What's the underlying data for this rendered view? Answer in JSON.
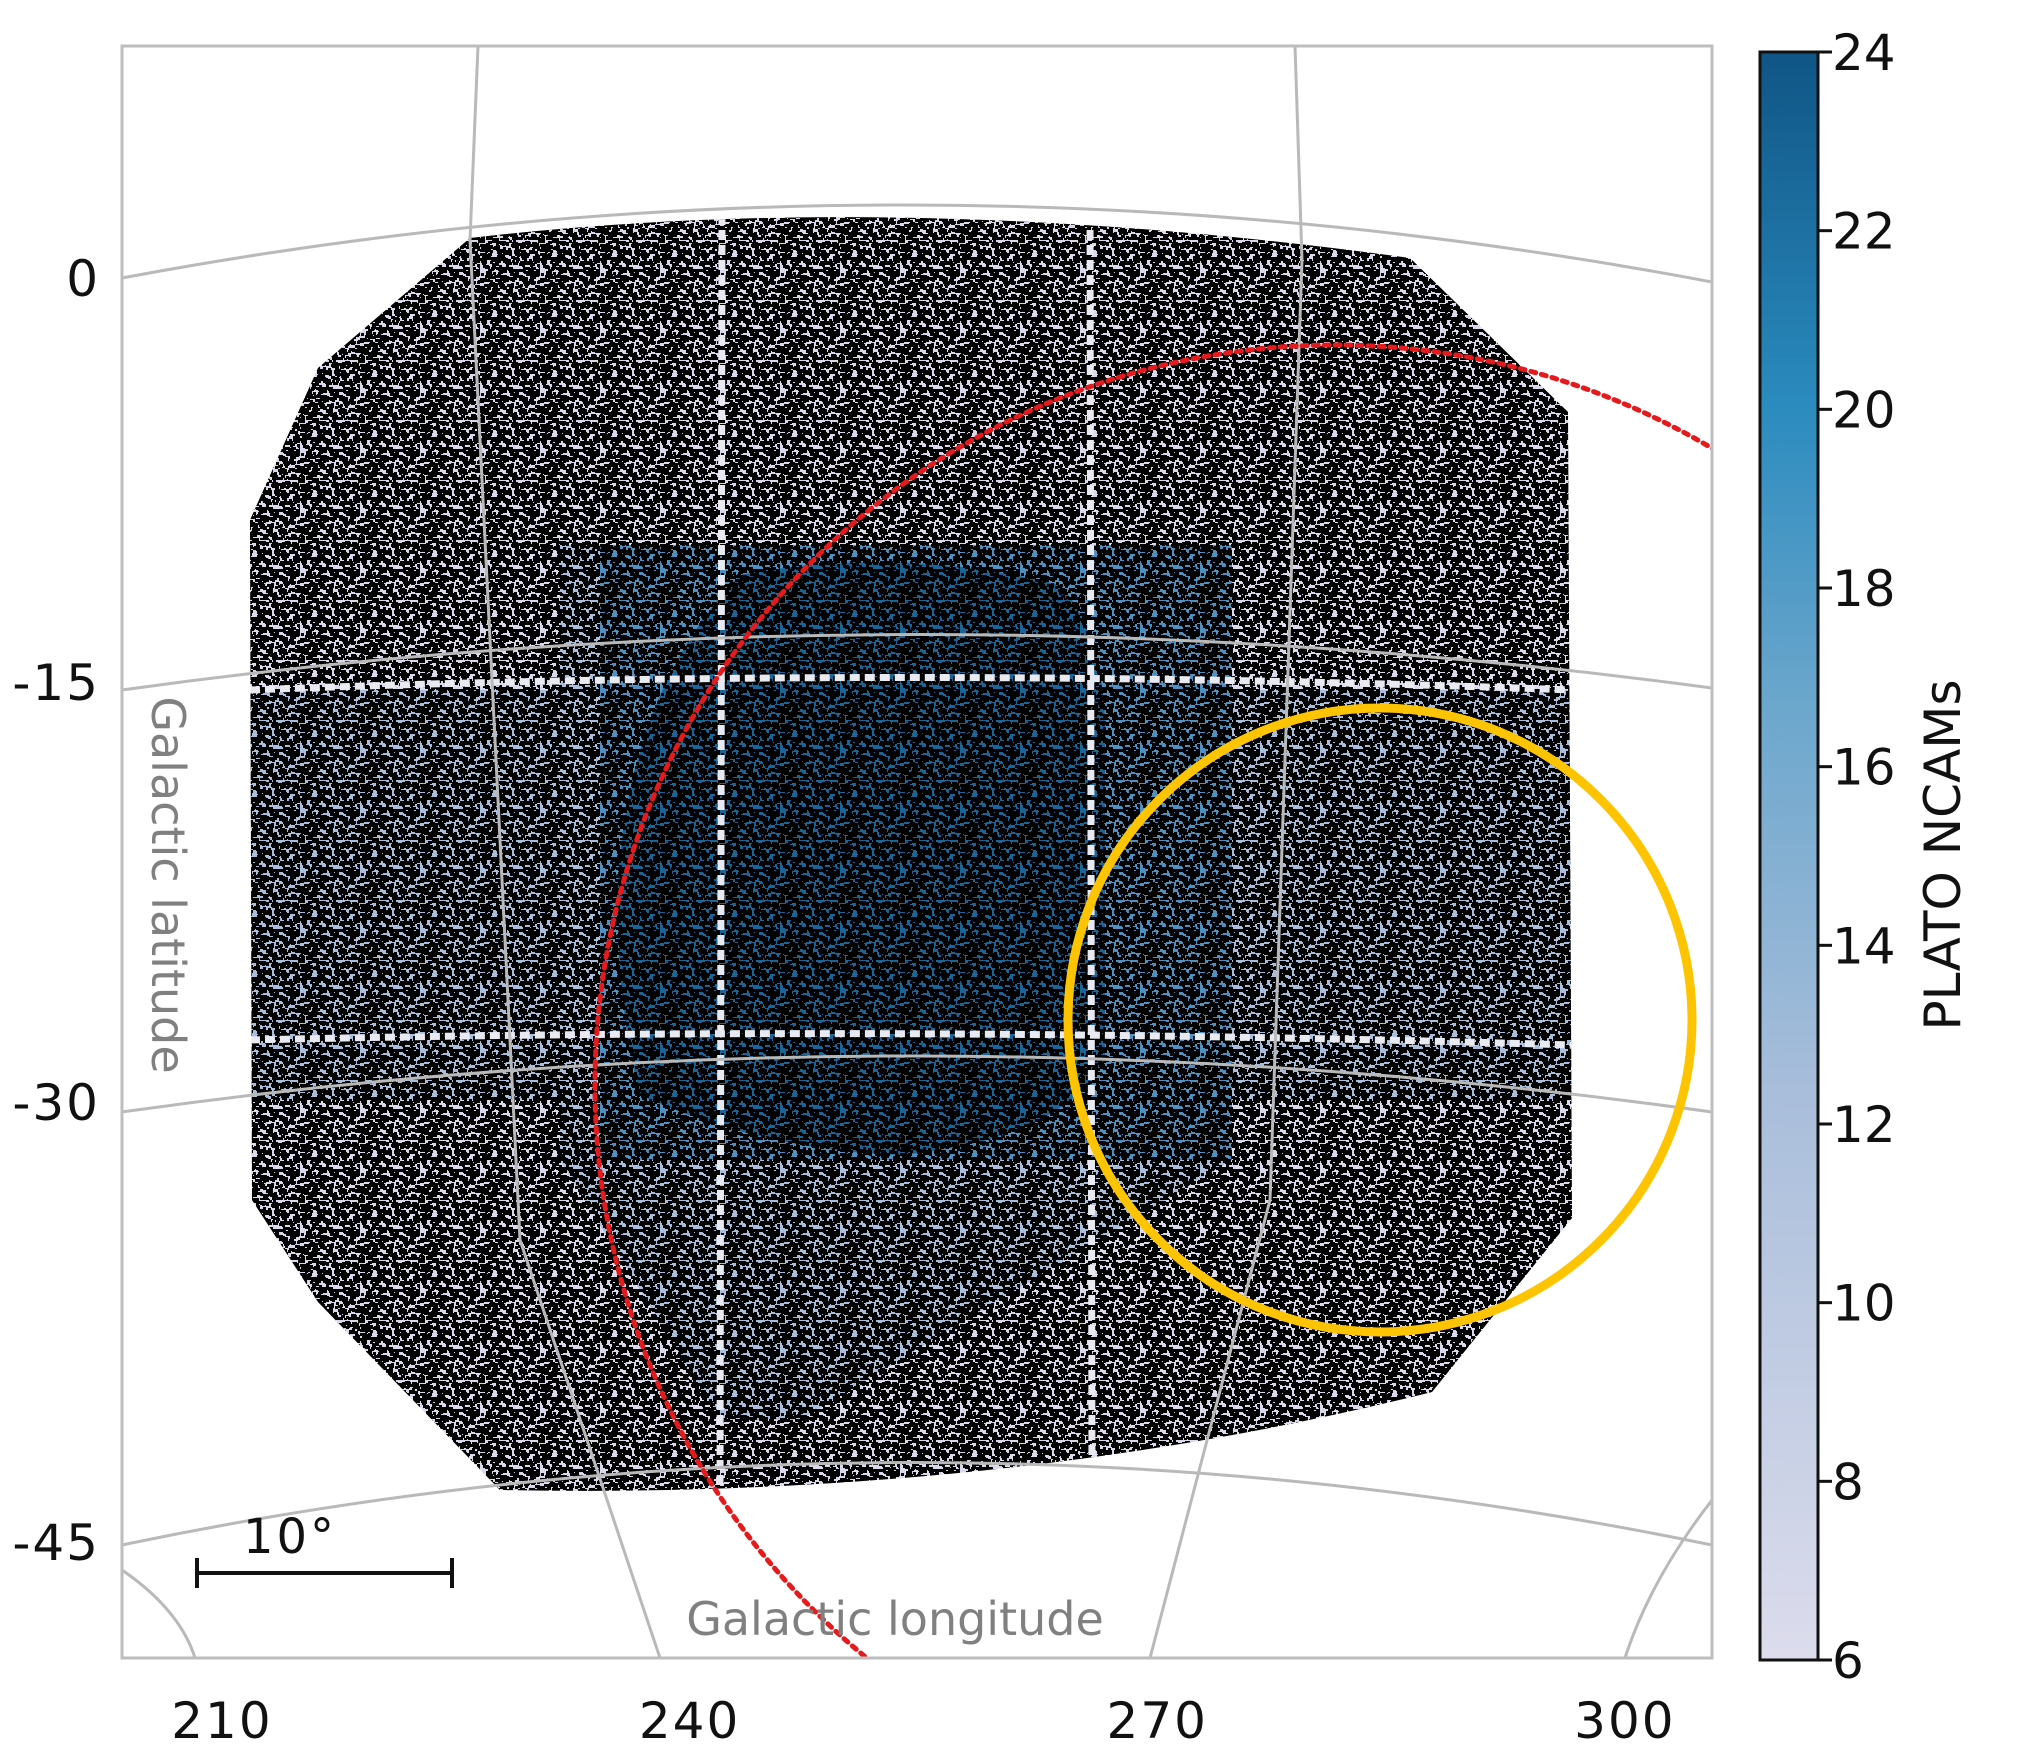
{
  "chart_data": {
    "type": "heatmap",
    "projection": "sky map (Galactic coordinates)",
    "xlabel": "Galactic longitude",
    "ylabel": "Galactic latitude",
    "x_ticks": [
      "210",
      "240",
      "270",
      "300"
    ],
    "y_ticks": [
      "0",
      "-15",
      "-30",
      "-45"
    ],
    "xlim": [
      205,
      307
    ],
    "ylim": [
      -49,
      9
    ],
    "graticule_longitudes": [
      240,
      270,
      300
    ],
    "graticule_latitudes": [
      0,
      -15,
      -30,
      -45
    ],
    "colorbar": {
      "label": "PLATO NCAMs",
      "min": 6,
      "max": 24,
      "ticks": [
        "24",
        "22",
        "20",
        "18",
        "16",
        "14",
        "12",
        "10",
        "8",
        "6"
      ]
    },
    "coverage_levels": [
      6,
      12,
      18,
      24
    ],
    "scale_bar": {
      "label": "10°",
      "length_deg": 10
    },
    "overlays": [
      {
        "name": "ecliptic circle",
        "color": "#e41a1c",
        "style": "dotted"
      },
      {
        "name": "target circle",
        "color": "#ffc400",
        "style": "solid"
      }
    ],
    "colors": {
      "ncam_6": "#d8d9ea",
      "ncam_12": "#a9bedb",
      "ncam_18": "#4e91c0",
      "ncam_24": "#1a6496",
      "stars": "#000000",
      "graticule": "#b9b9b9"
    }
  }
}
